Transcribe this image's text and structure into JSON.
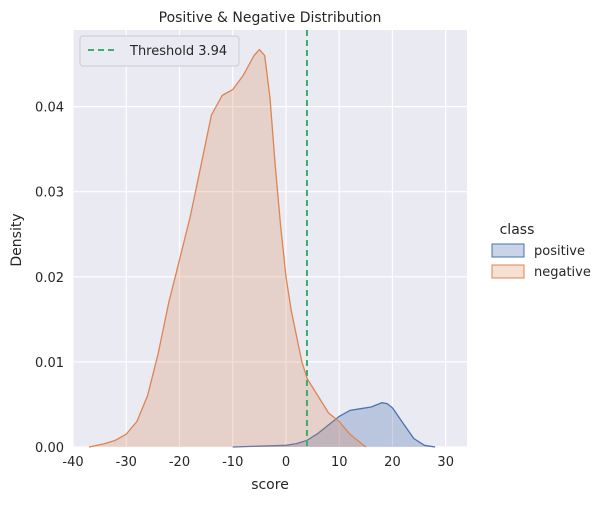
{
  "chart_data": {
    "type": "area",
    "title": "Positive & Negative Distribution",
    "xlabel": "score",
    "ylabel": "Density",
    "xlim": [
      -40,
      34
    ],
    "ylim": [
      0,
      0.049
    ],
    "xticks": [
      -40,
      -30,
      -20,
      -10,
      0,
      10,
      20,
      30
    ],
    "yticks": [
      0.0,
      0.01,
      0.02,
      0.03,
      0.04
    ],
    "ytick_labels": [
      "0.00",
      "0.01",
      "0.02",
      "0.03",
      "0.04"
    ],
    "grid": true,
    "background": "#eaeaf2",
    "threshold": {
      "value": 3.94,
      "label": "Threshold 3.94",
      "color": "#3aae6b"
    },
    "legend": {
      "title": "class",
      "placement": "right-outside"
    },
    "series": [
      {
        "name": "positive",
        "color": "#4c72b0",
        "fill": "rgba(76,114,176,0.30)",
        "x": [
          -10,
          -5,
          0,
          2,
          4,
          6,
          8,
          10,
          12,
          14,
          16,
          18,
          19,
          20,
          22,
          24,
          26,
          28
        ],
        "y": [
          0.0,
          0.0001,
          0.0002,
          0.0004,
          0.0008,
          0.0016,
          0.0026,
          0.0036,
          0.0043,
          0.0045,
          0.0047,
          0.0052,
          0.0051,
          0.0046,
          0.0028,
          0.001,
          0.0002,
          0.0
        ]
      },
      {
        "name": "negative",
        "color": "#dd8452",
        "fill": "rgba(221,132,82,0.25)",
        "x": [
          -37,
          -34,
          -32,
          -30,
          -28,
          -26,
          -24,
          -22,
          -20,
          -18,
          -16,
          -14,
          -12,
          -10,
          -8,
          -6,
          -5,
          -4,
          -3,
          -2,
          -1,
          0,
          1,
          2,
          3,
          4,
          5,
          6,
          8,
          10,
          12,
          14,
          15
        ],
        "y": [
          0.0,
          0.0004,
          0.0008,
          0.0015,
          0.003,
          0.006,
          0.011,
          0.017,
          0.022,
          0.027,
          0.033,
          0.039,
          0.0413,
          0.042,
          0.0437,
          0.046,
          0.0467,
          0.046,
          0.041,
          0.033,
          0.026,
          0.02,
          0.016,
          0.013,
          0.01,
          0.008,
          0.007,
          0.006,
          0.004,
          0.003,
          0.0015,
          0.0005,
          0.0
        ]
      }
    ]
  }
}
